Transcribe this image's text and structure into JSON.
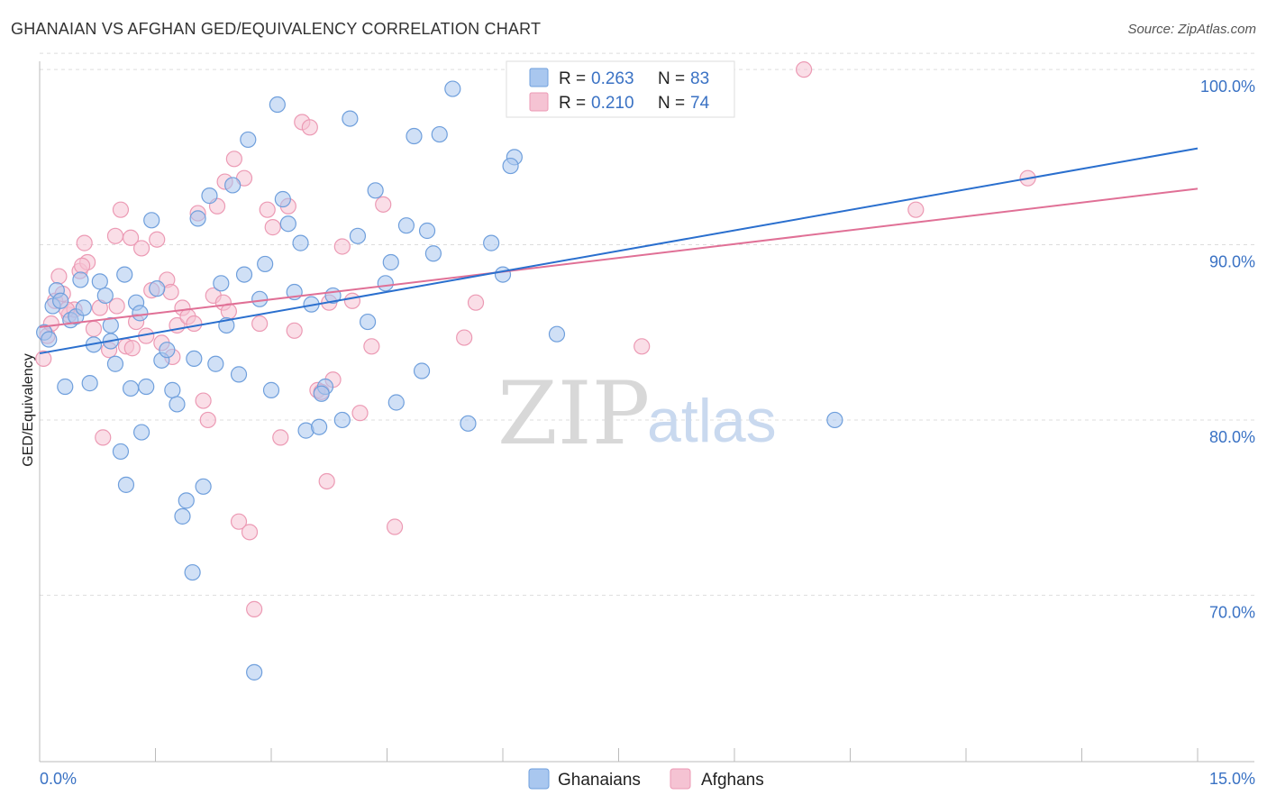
{
  "header": {
    "title": "GHANAIAN VS AFGHAN GED/EQUIVALENCY CORRELATION CHART",
    "source": "Source: ZipAtlas.com"
  },
  "colors": {
    "ghanaians": "#6f9fdc",
    "ghanaians_fill": "#a9c7ef",
    "ghanaians_line": "#2a6fce",
    "afghans": "#ec9ab4",
    "afghans_fill": "#f5c3d3",
    "afghans_line": "#e07096",
    "tick": "#3a72c4",
    "grid": "#dddddd"
  },
  "legend": {
    "rows": [
      {
        "r_label": "R = ",
        "r_value": "0.263",
        "n_label": "N = ",
        "n_value": "83"
      },
      {
        "r_label": "R = ",
        "r_value": "0.210",
        "n_label": "N = ",
        "n_value": "74"
      }
    ]
  },
  "bottom_legend": [
    "Ghanaians",
    "Afghans"
  ],
  "watermark": {
    "zip": "ZIP",
    "atlas": "atlas"
  },
  "chart_data": {
    "type": "scatter",
    "title": "GHANAIAN VS AFGHAN GED/EQUIVALENCY CORRELATION CHART",
    "xlabel": "",
    "ylabel": "GED/Equivalency",
    "xlim": [
      0,
      15
    ],
    "ylim": [
      60.5,
      101.5
    ],
    "x_tick_labels": [
      "0.0%",
      "15.0%"
    ],
    "y_ticks": [
      70,
      80,
      90,
      100
    ],
    "y_tick_labels": [
      "70.0%",
      "80.0%",
      "90.0%",
      "100.0%"
    ],
    "legend_position": "top-center",
    "series": [
      {
        "name": "Ghanaians",
        "R": 0.263,
        "N": 83,
        "trend": {
          "x": [
            0,
            15
          ],
          "y": [
            83.8,
            95.5
          ]
        },
        "points": [
          [
            0.06,
            85.0
          ],
          [
            0.12,
            84.6
          ],
          [
            0.17,
            86.5
          ],
          [
            0.22,
            87.4
          ],
          [
            0.27,
            86.8
          ],
          [
            0.33,
            81.9
          ],
          [
            0.4,
            85.7
          ],
          [
            0.47,
            85.9
          ],
          [
            0.53,
            88.0
          ],
          [
            0.57,
            86.4
          ],
          [
            0.65,
            82.1
          ],
          [
            0.7,
            84.3
          ],
          [
            0.78,
            87.9
          ],
          [
            0.85,
            87.1
          ],
          [
            0.92,
            84.5
          ],
          [
            0.98,
            83.2
          ],
          [
            1.05,
            78.2
          ],
          [
            1.12,
            76.3
          ],
          [
            1.18,
            81.8
          ],
          [
            1.25,
            86.7
          ],
          [
            1.32,
            79.3
          ],
          [
            1.38,
            81.9
          ],
          [
            1.45,
            91.4
          ],
          [
            1.52,
            87.5
          ],
          [
            1.58,
            83.4
          ],
          [
            1.65,
            84.0
          ],
          [
            1.72,
            81.7
          ],
          [
            1.78,
            80.9
          ],
          [
            1.85,
            74.5
          ],
          [
            1.9,
            75.4
          ],
          [
            1.98,
            71.3
          ],
          [
            2.05,
            91.5
          ],
          [
            2.12,
            76.2
          ],
          [
            2.2,
            92.8
          ],
          [
            2.28,
            83.2
          ],
          [
            2.35,
            87.8
          ],
          [
            2.42,
            85.4
          ],
          [
            2.5,
            93.4
          ],
          [
            2.58,
            82.6
          ],
          [
            2.65,
            88.3
          ],
          [
            2.7,
            96.0
          ],
          [
            2.78,
            65.6
          ],
          [
            2.85,
            86.9
          ],
          [
            2.92,
            88.9
          ],
          [
            3.0,
            81.7
          ],
          [
            3.08,
            98.0
          ],
          [
            3.15,
            92.6
          ],
          [
            3.22,
            91.2
          ],
          [
            3.3,
            87.3
          ],
          [
            3.38,
            90.1
          ],
          [
            3.45,
            79.4
          ],
          [
            3.52,
            86.6
          ],
          [
            3.62,
            79.6
          ],
          [
            3.7,
            81.9
          ],
          [
            3.8,
            87.1
          ],
          [
            3.92,
            80.0
          ],
          [
            4.02,
            97.2
          ],
          [
            4.12,
            90.5
          ],
          [
            4.25,
            85.6
          ],
          [
            4.35,
            93.1
          ],
          [
            4.48,
            87.8
          ],
          [
            4.55,
            89.0
          ],
          [
            4.62,
            81.0
          ],
          [
            4.75,
            91.1
          ],
          [
            4.85,
            96.2
          ],
          [
            4.95,
            82.8
          ],
          [
            5.02,
            90.8
          ],
          [
            5.1,
            89.5
          ],
          [
            5.18,
            96.3
          ],
          [
            5.35,
            98.9
          ],
          [
            5.55,
            79.8
          ],
          [
            5.85,
            90.1
          ],
          [
            6.0,
            88.3
          ],
          [
            6.15,
            95.0
          ],
          [
            6.35,
            100.0
          ],
          [
            6.7,
            84.9
          ],
          [
            10.3,
            80.0
          ],
          [
            0.92,
            85.4
          ],
          [
            1.1,
            88.3
          ],
          [
            1.3,
            86.1
          ],
          [
            2.0,
            83.5
          ],
          [
            3.65,
            81.5
          ],
          [
            6.1,
            94.5
          ]
        ]
      },
      {
        "name": "Afghans",
        "R": 0.21,
        "N": 74,
        "trend": {
          "x": [
            0,
            15
          ],
          "y": [
            85.3,
            93.2
          ]
        },
        "points": [
          [
            0.05,
            83.5
          ],
          [
            0.1,
            84.8
          ],
          [
            0.15,
            85.5
          ],
          [
            0.2,
            86.8
          ],
          [
            0.25,
            88.2
          ],
          [
            0.3,
            87.2
          ],
          [
            0.38,
            86.0
          ],
          [
            0.45,
            86.3
          ],
          [
            0.52,
            88.5
          ],
          [
            0.58,
            90.1
          ],
          [
            0.62,
            89.0
          ],
          [
            0.7,
            85.2
          ],
          [
            0.78,
            86.4
          ],
          [
            0.82,
            79.0
          ],
          [
            0.9,
            84.0
          ],
          [
            0.98,
            90.5
          ],
          [
            1.05,
            92.0
          ],
          [
            1.12,
            84.2
          ],
          [
            1.18,
            90.4
          ],
          [
            1.25,
            85.6
          ],
          [
            1.32,
            89.8
          ],
          [
            1.38,
            84.8
          ],
          [
            1.45,
            87.4
          ],
          [
            1.52,
            90.3
          ],
          [
            1.58,
            84.4
          ],
          [
            1.65,
            88.0
          ],
          [
            1.72,
            83.6
          ],
          [
            1.78,
            85.4
          ],
          [
            1.85,
            86.4
          ],
          [
            1.92,
            85.9
          ],
          [
            2.0,
            85.5
          ],
          [
            2.05,
            91.8
          ],
          [
            2.12,
            81.1
          ],
          [
            2.18,
            80.0
          ],
          [
            2.25,
            87.1
          ],
          [
            2.3,
            92.2
          ],
          [
            2.38,
            86.7
          ],
          [
            2.45,
            86.2
          ],
          [
            2.52,
            94.9
          ],
          [
            2.58,
            74.2
          ],
          [
            2.65,
            93.8
          ],
          [
            2.72,
            73.6
          ],
          [
            2.78,
            69.2
          ],
          [
            2.85,
            85.5
          ],
          [
            2.95,
            92.0
          ],
          [
            3.02,
            91.0
          ],
          [
            3.12,
            79.0
          ],
          [
            3.22,
            92.2
          ],
          [
            3.3,
            85.1
          ],
          [
            3.4,
            97.0
          ],
          [
            3.5,
            96.7
          ],
          [
            3.6,
            81.7
          ],
          [
            3.72,
            76.5
          ],
          [
            3.8,
            82.3
          ],
          [
            3.92,
            89.9
          ],
          [
            4.05,
            86.8
          ],
          [
            4.15,
            80.4
          ],
          [
            4.3,
            84.2
          ],
          [
            4.45,
            92.3
          ],
          [
            4.6,
            73.9
          ],
          [
            5.5,
            84.7
          ],
          [
            5.65,
            86.7
          ],
          [
            7.8,
            84.2
          ],
          [
            9.9,
            100.0
          ],
          [
            11.35,
            92.0
          ],
          [
            12.8,
            93.8
          ],
          [
            0.35,
            86.3
          ],
          [
            0.55,
            88.8
          ],
          [
            1.0,
            86.5
          ],
          [
            1.2,
            84.1
          ],
          [
            1.7,
            87.3
          ],
          [
            2.4,
            93.6
          ],
          [
            3.65,
            81.6
          ],
          [
            3.75,
            86.7
          ]
        ]
      }
    ]
  }
}
